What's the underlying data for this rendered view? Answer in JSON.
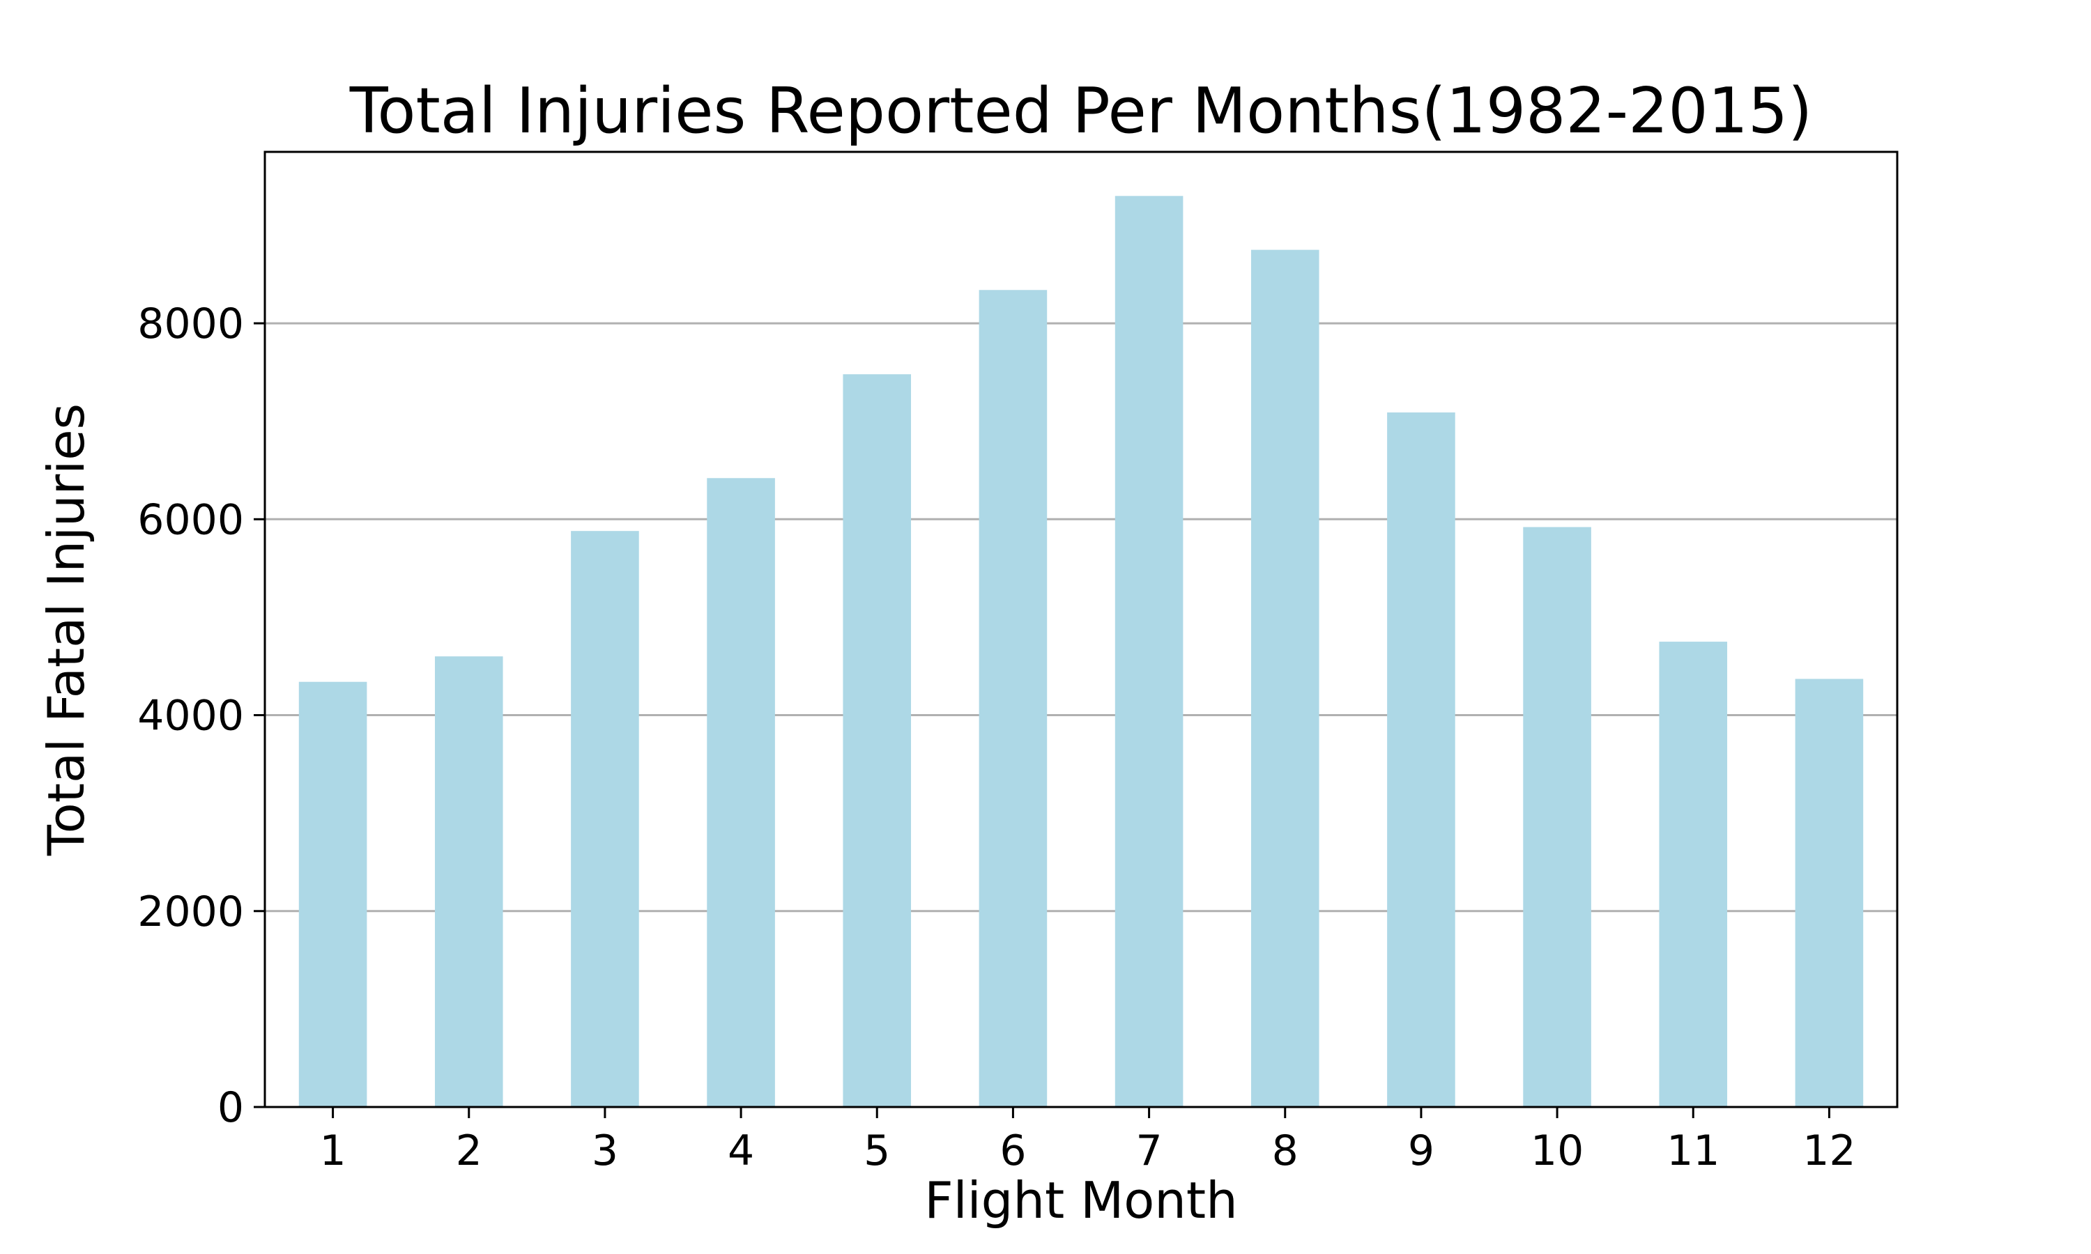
{
  "chart_data": {
    "type": "bar",
    "title": "Total Injuries Reported Per Months(1982-2015)",
    "xlabel": "Flight Month",
    "ylabel": "Total Fatal Injuries",
    "categories": [
      "1",
      "2",
      "3",
      "4",
      "5",
      "6",
      "7",
      "8",
      "9",
      "10",
      "11",
      "12"
    ],
    "values": [
      4340,
      4600,
      5880,
      6420,
      7480,
      8340,
      9300,
      8750,
      7090,
      5920,
      4750,
      4370
    ],
    "ylim": [
      0,
      9750
    ],
    "yticks": [
      0,
      2000,
      4000,
      6000,
      8000
    ],
    "grid": "horizontal",
    "legend": "none",
    "bar_color": "#add8e6"
  }
}
